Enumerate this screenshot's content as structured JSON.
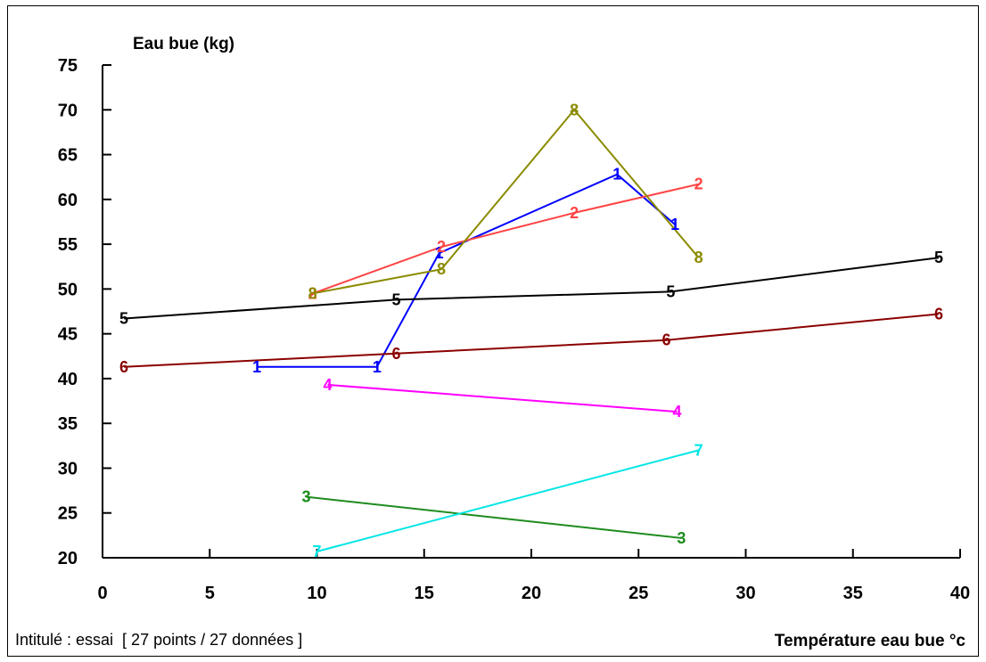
{
  "chart_data": {
    "type": "line",
    "ylabel": "Eau bue (kg)",
    "xlabel": "Température eau bue °c",
    "footer": "Intitulé : essai  [ 27 points / 27 données ]",
    "xlim": [
      0,
      40
    ],
    "ylim": [
      20,
      75
    ],
    "xticks": [
      0,
      5,
      10,
      15,
      20,
      25,
      30,
      35,
      40
    ],
    "yticks": [
      20,
      25,
      30,
      35,
      40,
      45,
      50,
      55,
      60,
      65,
      70,
      75
    ],
    "grid": false,
    "series": [
      {
        "marker": "1",
        "color": "#0000ff",
        "points": [
          [
            7.2,
            41.3
          ],
          [
            12.8,
            41.3
          ],
          [
            15.7,
            54.0
          ],
          [
            24.0,
            62.8
          ],
          [
            26.7,
            57.2
          ]
        ]
      },
      {
        "marker": "2",
        "color": "#ff4444",
        "points": [
          [
            9.8,
            49.5
          ],
          [
            15.8,
            54.7
          ],
          [
            22.0,
            58.5
          ],
          [
            27.8,
            61.7
          ]
        ]
      },
      {
        "marker": "3",
        "color": "#1e8c1e",
        "points": [
          [
            9.5,
            26.8
          ],
          [
            27.0,
            22.2
          ]
        ]
      },
      {
        "marker": "4",
        "color": "#ff00ff",
        "points": [
          [
            10.5,
            39.3
          ],
          [
            26.8,
            36.3
          ]
        ]
      },
      {
        "marker": "5",
        "color": "#000000",
        "points": [
          [
            1.0,
            46.7
          ],
          [
            13.7,
            48.8
          ],
          [
            26.5,
            49.7
          ],
          [
            39.0,
            53.5
          ]
        ]
      },
      {
        "marker": "6",
        "color": "#8b0000",
        "points": [
          [
            1.0,
            41.3
          ],
          [
            13.7,
            42.8
          ],
          [
            26.3,
            44.3
          ],
          [
            39.0,
            47.2
          ]
        ]
      },
      {
        "marker": "7",
        "color": "#00e5e5",
        "points": [
          [
            10.0,
            20.7
          ],
          [
            27.8,
            32.0
          ]
        ]
      },
      {
        "marker": "8",
        "color": "#8b8b00",
        "points": [
          [
            9.8,
            49.5
          ],
          [
            15.8,
            52.2
          ],
          [
            22.0,
            70.0
          ],
          [
            27.8,
            53.5
          ]
        ]
      }
    ]
  }
}
